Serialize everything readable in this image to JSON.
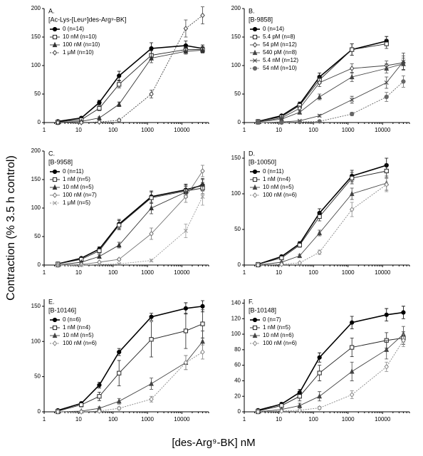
{
  "y_label": "Contraction (% 3.5 h control)",
  "x_label": "[des-Arg⁹-BK]  nM",
  "chart_data": [
    {
      "type": "line",
      "panel": "A.",
      "title": "[Ac-Lys-[Leu⁸]des-Arg⁹-BK]",
      "log_x": true,
      "x": [
        2.5,
        12,
        40,
        150,
        1300,
        13000,
        40000
      ],
      "xlim": [
        1,
        60000
      ],
      "xticks": [
        1,
        10,
        100,
        1000,
        10000
      ],
      "ylim": [
        0,
        200
      ],
      "yticks": [
        0,
        50,
        100,
        150,
        200
      ],
      "series": [
        {
          "name": "0 (n=14)",
          "color": "#000000",
          "marker": "circle",
          "values": [
            2,
            8,
            35,
            82,
            130,
            135,
            130
          ],
          "errors": [
            1,
            2,
            4,
            8,
            10,
            8,
            6
          ]
        },
        {
          "name": "10 nM (n=10)",
          "color": "#222222",
          "marker": "square",
          "values": [
            1,
            5,
            25,
            67,
            118,
            128,
            128
          ],
          "errors": [
            1,
            2,
            4,
            6,
            8,
            5,
            5
          ]
        },
        {
          "name": "100 nM (n=10)",
          "color": "#333333",
          "marker": "triangle",
          "values": [
            0,
            2,
            8,
            32,
            113,
            125,
            127
          ],
          "errors": [
            0.5,
            1,
            2,
            4,
            8,
            5,
            5
          ]
        },
        {
          "name": "1 μM (n=10)",
          "color": "#444444",
          "marker": "diamond",
          "values": [
            0,
            0,
            1,
            4,
            50,
            165,
            188
          ],
          "errors": [
            0,
            0,
            1,
            2,
            7,
            15,
            15
          ]
        }
      ]
    },
    {
      "type": "line",
      "panel": "B.",
      "title": "[B-9858]",
      "log_x": true,
      "x": [
        2.5,
        12,
        40,
        150,
        1300,
        13000,
        40000
      ],
      "xlim": [
        1,
        60000
      ],
      "xticks": [
        1,
        10,
        100,
        1000,
        10000
      ],
      "ylim": [
        0,
        200
      ],
      "yticks": [
        0,
        50,
        100,
        150,
        200
      ],
      "series": [
        {
          "name": "0 (n=14)",
          "color": "#000000",
          "marker": "circle",
          "values": [
            2,
            12,
            32,
            80,
            128,
            143,
            null
          ],
          "errors": [
            1,
            2,
            4,
            7,
            10,
            8,
            null
          ]
        },
        {
          "name": "5.4 pM (n=8)",
          "color": "#222222",
          "marker": "square",
          "values": [
            2,
            10,
            30,
            75,
            128,
            138,
            null
          ],
          "errors": [
            1,
            2,
            4,
            7,
            10,
            8,
            null
          ]
        },
        {
          "name": "54 pM (n=12)",
          "color": "#444444",
          "marker": "diamond",
          "values": [
            1,
            8,
            25,
            70,
            95,
            100,
            105
          ],
          "errors": [
            1,
            2,
            4,
            7,
            8,
            8,
            12
          ]
        },
        {
          "name": "540 pM (n=8)",
          "color": "#444444",
          "marker": "triangle",
          "values": [
            1,
            6,
            18,
            45,
            80,
            95,
            103
          ],
          "errors": [
            1,
            2,
            3,
            5,
            8,
            8,
            10
          ]
        },
        {
          "name": "5.4 nM (n=12)",
          "color": "#444444",
          "marker": "cross",
          "values": [
            0,
            1,
            3,
            12,
            40,
            70,
            107
          ],
          "errors": [
            0,
            1,
            1,
            2,
            6,
            10,
            15
          ]
        },
        {
          "name": "54 nM (n=10)",
          "color": "#666666",
          "marker": "circle",
          "values": [
            0,
            0,
            1,
            2,
            15,
            45,
            72
          ],
          "errors": [
            0,
            0,
            1,
            1,
            3,
            8,
            10
          ]
        }
      ]
    },
    {
      "type": "line",
      "panel": "C.",
      "title": "[B-9958]",
      "log_x": true,
      "x": [
        2.5,
        12,
        40,
        150,
        1300,
        13000,
        40000
      ],
      "xlim": [
        1,
        60000
      ],
      "xticks": [
        1,
        10,
        100,
        1000,
        10000
      ],
      "ylim": [
        0,
        200
      ],
      "yticks": [
        0,
        50,
        100,
        150,
        200
      ],
      "series": [
        {
          "name": "0 (n=11)",
          "color": "#000000",
          "marker": "circle",
          "values": [
            2,
            12,
            28,
            72,
            120,
            132,
            140
          ],
          "errors": [
            1,
            2,
            4,
            8,
            10,
            10,
            10
          ]
        },
        {
          "name": "1 nM (n=5)",
          "color": "#222222",
          "marker": "square",
          "values": [
            2,
            10,
            25,
            70,
            118,
            130,
            135
          ],
          "errors": [
            1,
            2,
            4,
            8,
            10,
            10,
            10
          ]
        },
        {
          "name": "10 nM (n=5)",
          "color": "#333333",
          "marker": "triangle",
          "values": [
            0,
            5,
            15,
            35,
            100,
            128,
            142
          ],
          "errors": [
            0,
            2,
            3,
            5,
            10,
            10,
            10
          ]
        },
        {
          "name": "100 nM (n=7)",
          "color": "#777777",
          "marker": "diamond",
          "values": [
            0,
            1,
            5,
            10,
            55,
            120,
            165
          ],
          "errors": [
            0,
            1,
            1,
            2,
            10,
            10,
            10
          ]
        },
        {
          "name": "1 μM (n=5)",
          "color": "#999999",
          "marker": "cross",
          "values": [
            0,
            0,
            1,
            2,
            8,
            60,
            120
          ],
          "errors": [
            0,
            0,
            0,
            1,
            2,
            12,
            15
          ]
        }
      ]
    },
    {
      "type": "line",
      "panel": "D.",
      "title": "[B-10050]",
      "log_x": true,
      "x": [
        2.5,
        12,
        40,
        150,
        1300,
        13000,
        40000
      ],
      "xlim": [
        1,
        60000
      ],
      "xticks": [
        1,
        10,
        100,
        1000,
        10000
      ],
      "ylim": [
        0,
        160
      ],
      "yticks": [
        0,
        50,
        100,
        150
      ],
      "series": [
        {
          "name": "0 (n=11)",
          "color": "#000000",
          "marker": "circle",
          "values": [
            1,
            12,
            30,
            73,
            125,
            140,
            null
          ],
          "errors": [
            1,
            2,
            3,
            6,
            8,
            10,
            null
          ]
        },
        {
          "name": "1 nM (n=4)",
          "color": "#222222",
          "marker": "square",
          "values": [
            1,
            10,
            28,
            68,
            122,
            132,
            null
          ],
          "errors": [
            1,
            2,
            3,
            6,
            8,
            10,
            null
          ]
        },
        {
          "name": "10 nM (n=5)",
          "color": "#444444",
          "marker": "triangle",
          "values": [
            0,
            4,
            13,
            45,
            100,
            115,
            null
          ],
          "errors": [
            0,
            1,
            2,
            4,
            8,
            10,
            null
          ]
        },
        {
          "name": "100 nM (n=6)",
          "color": "#888888",
          "marker": "diamond",
          "values": [
            0,
            1,
            3,
            18,
            78,
            113,
            null
          ],
          "errors": [
            0,
            0,
            1,
            3,
            10,
            10,
            null
          ]
        }
      ]
    },
    {
      "type": "line",
      "panel": "E.",
      "title": "[B-10146]",
      "log_x": true,
      "x": [
        2.5,
        12,
        40,
        150,
        1300,
        13000,
        40000
      ],
      "xlim": [
        1,
        60000
      ],
      "xticks": [
        1,
        10,
        100,
        1000,
        10000
      ],
      "ylim": [
        0,
        160
      ],
      "yticks": [
        0,
        50,
        100,
        150
      ],
      "series": [
        {
          "name": "0 (n=6)",
          "color": "#000000",
          "marker": "circle",
          "values": [
            2,
            12,
            38,
            85,
            135,
            147,
            150
          ],
          "errors": [
            1,
            2,
            4,
            5,
            5,
            8,
            8
          ]
        },
        {
          "name": "1 nM (n=4)",
          "color": "#222222",
          "marker": "square",
          "values": [
            1,
            10,
            22,
            55,
            103,
            115,
            125
          ],
          "errors": [
            1,
            3,
            6,
            18,
            25,
            25,
            20
          ]
        },
        {
          "name": "10 nM (n=5)",
          "color": "#444444",
          "marker": "triangle",
          "values": [
            0,
            1,
            5,
            15,
            40,
            70,
            100
          ],
          "errors": [
            0,
            1,
            2,
            4,
            8,
            10,
            15
          ]
        },
        {
          "name": "100 nM (n=6)",
          "color": "#888888",
          "marker": "diamond",
          "values": [
            0,
            0,
            1,
            5,
            18,
            70,
            85
          ],
          "errors": [
            0,
            0,
            0,
            2,
            4,
            10,
            10
          ]
        }
      ]
    },
    {
      "type": "line",
      "panel": "F.",
      "title": "[B-10148]",
      "log_x": true,
      "x": [
        2.5,
        12,
        40,
        150,
        1300,
        13000,
        40000
      ],
      "xlim": [
        1,
        60000
      ],
      "xticks": [
        1,
        10,
        100,
        1000,
        10000
      ],
      "ylim": [
        0,
        145
      ],
      "yticks": [
        0,
        20,
        40,
        60,
        80,
        100,
        120,
        140
      ],
      "series": [
        {
          "name": "0 (n=7)",
          "color": "#000000",
          "marker": "circle",
          "values": [
            2,
            10,
            25,
            70,
            115,
            125,
            128
          ],
          "errors": [
            1,
            2,
            4,
            6,
            8,
            8,
            8
          ]
        },
        {
          "name": "1 nM (n=5)",
          "color": "#222222",
          "marker": "square",
          "values": [
            1,
            8,
            20,
            50,
            83,
            92,
            95
          ],
          "errors": [
            1,
            2,
            6,
            10,
            12,
            10,
            8
          ]
        },
        {
          "name": "10 nM (n=6)",
          "color": "#444444",
          "marker": "triangle",
          "values": [
            0,
            3,
            8,
            20,
            52,
            80,
            100
          ],
          "errors": [
            0,
            1,
            3,
            6,
            12,
            12,
            10
          ]
        },
        {
          "name": "100 nM (n=6)",
          "color": "#888888",
          "marker": "diamond",
          "values": [
            0,
            1,
            2,
            5,
            22,
            58,
            92
          ],
          "errors": [
            0,
            0,
            1,
            2,
            5,
            6,
            8
          ]
        }
      ]
    }
  ]
}
